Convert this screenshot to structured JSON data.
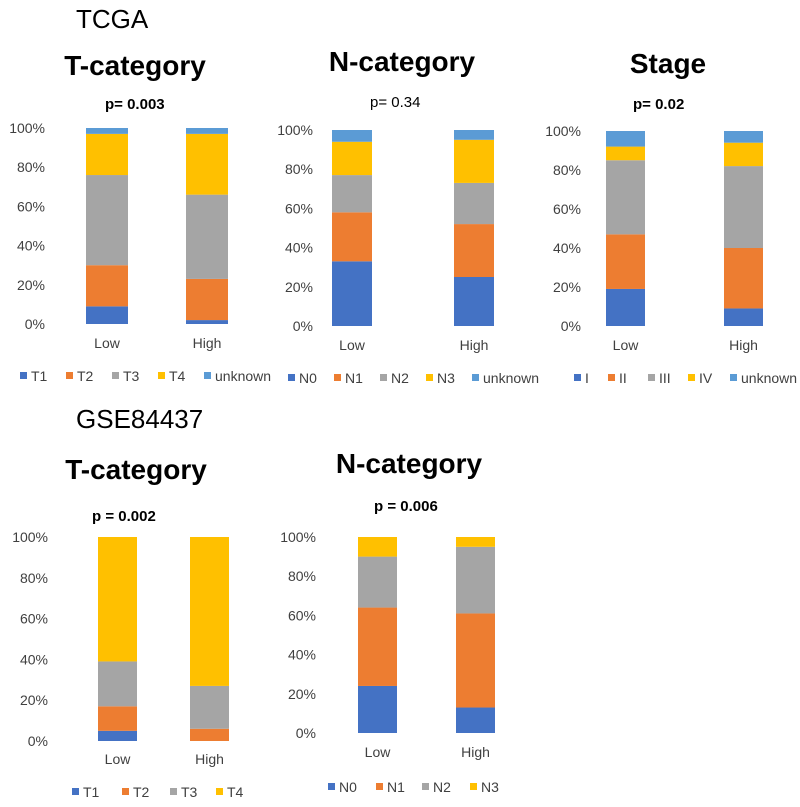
{
  "sections": [
    {
      "label": "TCGA"
    },
    {
      "label": "GSE84437"
    }
  ],
  "colors": {
    "T1": "#4472C4",
    "T2": "#ED7D31",
    "T3": "#A5A5A5",
    "T4": "#FFC000",
    "unknown": "#5B9BD5"
  },
  "chart_data": [
    {
      "type": "bar",
      "stacked": true,
      "title": "T-category",
      "pvalue": "p= 0.003",
      "pvalue_bold": true,
      "categories": [
        "Low",
        "High"
      ],
      "ylim": [
        0,
        100
      ],
      "yticks": [
        "0%",
        "20%",
        "40%",
        "60%",
        "80%",
        "100%"
      ],
      "series": [
        {
          "name": "T1",
          "color": "#4472C4",
          "values": [
            9,
            2
          ]
        },
        {
          "name": "T2",
          "color": "#ED7D31",
          "values": [
            21,
            21
          ]
        },
        {
          "name": "T3",
          "color": "#A5A5A5",
          "values": [
            46,
            43
          ]
        },
        {
          "name": "T4",
          "color": "#FFC000",
          "values": [
            21,
            31
          ]
        },
        {
          "name": "unknown",
          "color": "#5B9BD5",
          "values": [
            3,
            3
          ]
        }
      ]
    },
    {
      "type": "bar",
      "stacked": true,
      "title": "N-category",
      "pvalue": "p= 0.34",
      "pvalue_bold": false,
      "categories": [
        "Low",
        "High"
      ],
      "ylim": [
        0,
        100
      ],
      "yticks": [
        "0%",
        "20%",
        "40%",
        "60%",
        "80%",
        "100%"
      ],
      "series": [
        {
          "name": "N0",
          "color": "#4472C4",
          "values": [
            33,
            25
          ]
        },
        {
          "name": "N1",
          "color": "#ED7D31",
          "values": [
            25,
            27
          ]
        },
        {
          "name": "N2",
          "color": "#A5A5A5",
          "values": [
            19,
            21
          ]
        },
        {
          "name": "N3",
          "color": "#FFC000",
          "values": [
            17,
            22
          ]
        },
        {
          "name": "unknown",
          "color": "#5B9BD5",
          "values": [
            6,
            5
          ]
        }
      ]
    },
    {
      "type": "bar",
      "stacked": true,
      "title": "Stage",
      "pvalue": "p= 0.02",
      "pvalue_bold": true,
      "categories": [
        "Low",
        "High"
      ],
      "ylim": [
        0,
        100
      ],
      "yticks": [
        "0%",
        "20%",
        "40%",
        "60%",
        "80%",
        "100%"
      ],
      "series": [
        {
          "name": "I",
          "color": "#4472C4",
          "values": [
            19,
            9
          ]
        },
        {
          "name": "II",
          "color": "#ED7D31",
          "values": [
            28,
            31
          ]
        },
        {
          "name": "III",
          "color": "#A5A5A5",
          "values": [
            38,
            42
          ]
        },
        {
          "name": "IV",
          "color": "#FFC000",
          "values": [
            7,
            12
          ]
        },
        {
          "name": "unknown",
          "color": "#5B9BD5",
          "values": [
            8,
            6
          ]
        }
      ]
    },
    {
      "type": "bar",
      "stacked": true,
      "title": "T-category",
      "pvalue": "p = 0.002",
      "pvalue_bold": true,
      "categories": [
        "Low",
        "High"
      ],
      "ylim": [
        0,
        100
      ],
      "yticks": [
        "0%",
        "20%",
        "40%",
        "60%",
        "80%",
        "100%"
      ],
      "series": [
        {
          "name": "T1",
          "color": "#4472C4",
          "values": [
            5,
            0
          ]
        },
        {
          "name": "T2",
          "color": "#ED7D31",
          "values": [
            12,
            6
          ]
        },
        {
          "name": "T3",
          "color": "#A5A5A5",
          "values": [
            22,
            21
          ]
        },
        {
          "name": "T4",
          "color": "#FFC000",
          "values": [
            61,
            73
          ]
        }
      ]
    },
    {
      "type": "bar",
      "stacked": true,
      "title": "N-category",
      "pvalue": "p = 0.006",
      "pvalue_bold": true,
      "categories": [
        "Low",
        "High"
      ],
      "ylim": [
        0,
        100
      ],
      "yticks": [
        "0%",
        "20%",
        "40%",
        "60%",
        "80%",
        "100%"
      ],
      "series": [
        {
          "name": "N0",
          "color": "#4472C4",
          "values": [
            24,
            13
          ]
        },
        {
          "name": "N1",
          "color": "#ED7D31",
          "values": [
            40,
            48
          ]
        },
        {
          "name": "N2",
          "color": "#A5A5A5",
          "values": [
            26,
            34
          ]
        },
        {
          "name": "N3",
          "color": "#FFC000",
          "values": [
            10,
            5
          ]
        }
      ]
    }
  ]
}
